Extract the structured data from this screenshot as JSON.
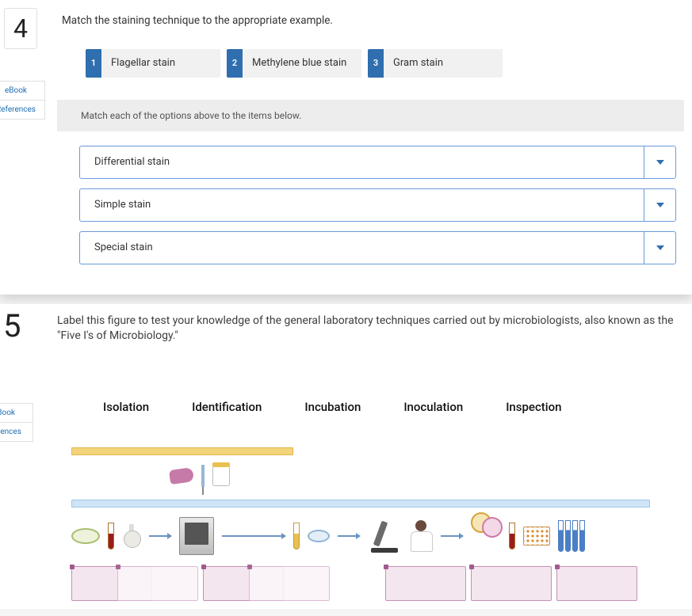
{
  "q4": {
    "number": "4",
    "prompt": "Match the staining technique to the appropriate example.",
    "sideLinks": [
      "eBook",
      "References"
    ],
    "options": [
      {
        "num": "1",
        "label": "Flagellar stain"
      },
      {
        "num": "2",
        "label": "Methylene blue stain"
      },
      {
        "num": "3",
        "label": "Gram stain"
      }
    ],
    "instruction": "Match each of the options above to the items below.",
    "targets": [
      "Differential stain",
      "Simple stain",
      "Special stain"
    ],
    "colors": {
      "optionNumBg": "#2f6eaf",
      "dropdownBorder": "#6a9bd8",
      "caret": "#2f6eaf"
    }
  },
  "q5": {
    "number": "5",
    "prompt": "Label this figure to test your knowledge of the general laboratory techniques carried out by microbiologists, also known as the \"Five I's of Microbiology.\"",
    "sideLinks": [
      "eBook",
      "eferences"
    ],
    "terms": [
      "Isolation",
      "Identification",
      "Incubation",
      "Inoculation",
      "Inspection"
    ],
    "figure": {
      "bar1Color": "#f3d37b",
      "bar2Color": "#cfe4f6",
      "dropTargetColor": "#f4e6ef",
      "dropTargetBorder": "#c48fb4"
    }
  }
}
